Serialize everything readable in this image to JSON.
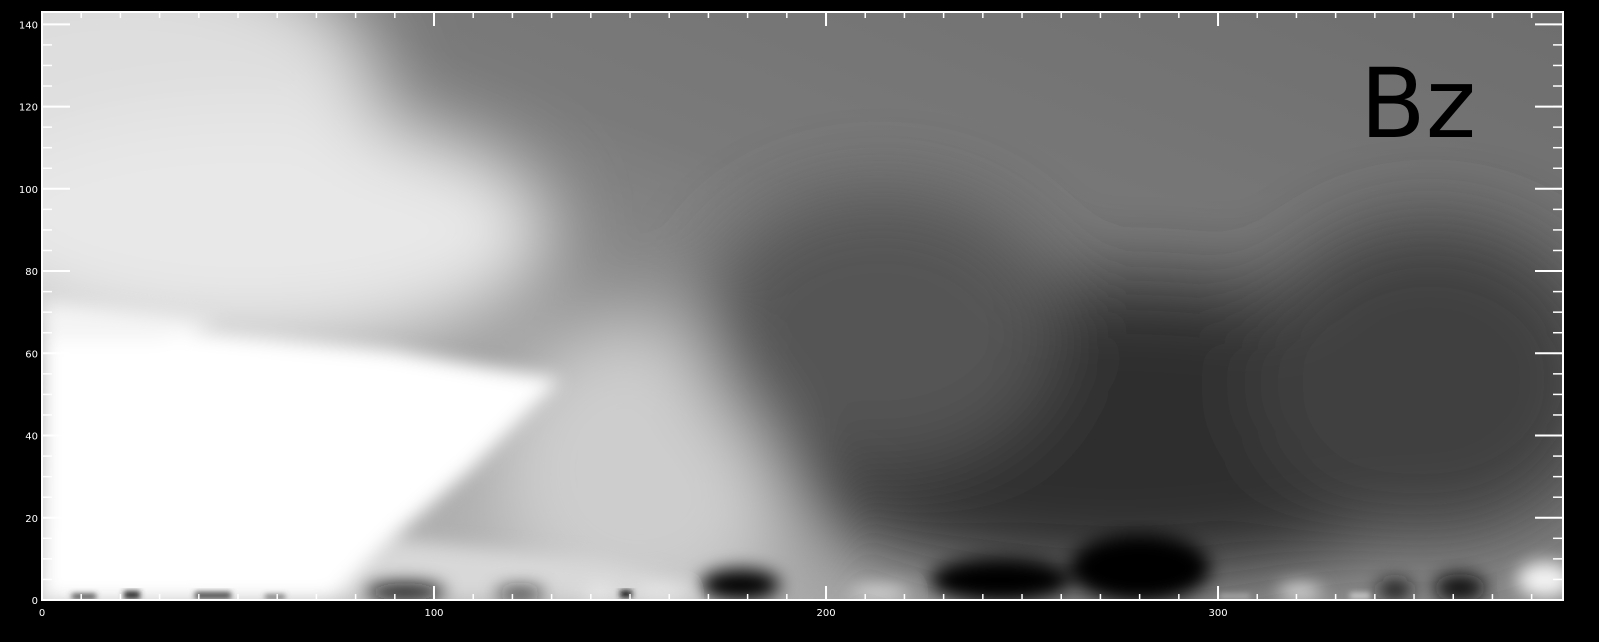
{
  "figure": {
    "label": "Bz"
  },
  "chart_data": {
    "type": "heatmap",
    "title": "",
    "xlabel": "",
    "ylabel": "",
    "xlim": [
      0,
      388
    ],
    "ylim": [
      0,
      143
    ],
    "grid": false,
    "colormap": "grayscale",
    "x_major_ticks": [
      0,
      100,
      200,
      300
    ],
    "x_tick_labels": [
      "0",
      "100",
      "200",
      "300"
    ],
    "y_major_ticks": [
      0,
      20,
      40,
      60,
      80,
      100,
      120,
      140
    ],
    "y_tick_labels": [
      "0",
      "20",
      "40",
      "60",
      "80",
      "100",
      "120",
      "140"
    ],
    "x_minor_step": 10,
    "y_minor_step": 5
  },
  "colors": {
    "background": "#000000",
    "frame": "#ffffff",
    "label": "#000000",
    "tick": "#ffffff"
  }
}
